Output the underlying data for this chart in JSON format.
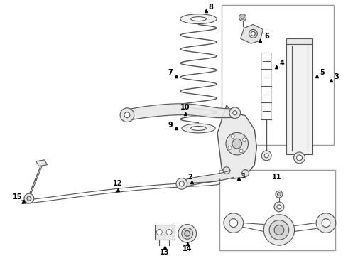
{
  "bg_color": "#ffffff",
  "line_color": "#555555",
  "box_color": "#888888",
  "label_color": "#000000",
  "fig_width": 4.9,
  "fig_height": 3.6,
  "dpi": 100
}
